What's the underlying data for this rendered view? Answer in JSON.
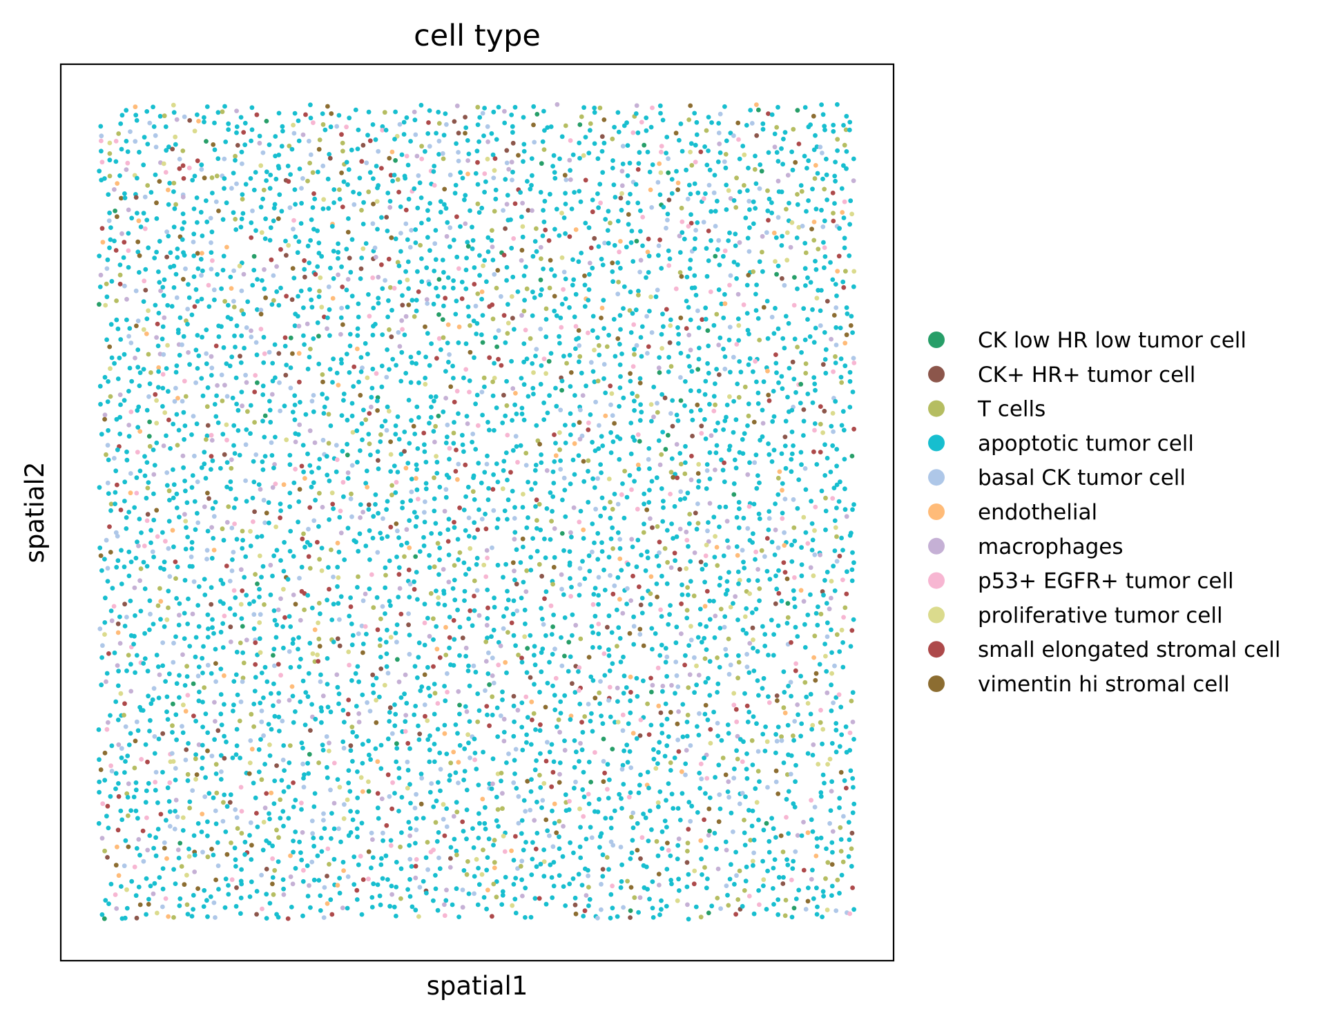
{
  "chart_data": {
    "type": "scatter",
    "title": "cell type",
    "xlabel": "spatial1",
    "ylabel": "spatial2",
    "grid": false,
    "ticks": false,
    "legend_placement": "right",
    "point_style": "small filled circles, tissue-like spatial layout filling a square region",
    "series": [
      {
        "name": "CK low HR low tumor cell",
        "color": "#279e68",
        "share": 0.015
      },
      {
        "name": "CK+ HR+ tumor cell",
        "color": "#8c564b",
        "share": 0.02
      },
      {
        "name": "T cells",
        "color": "#b5bd61",
        "share": 0.065
      },
      {
        "name": "apoptotic tumor cell",
        "color": "#17becf",
        "share": 0.6
      },
      {
        "name": "basal CK tumor cell",
        "color": "#aec7e8",
        "share": 0.09
      },
      {
        "name": "endothelial",
        "color": "#ffbb78",
        "share": 0.02
      },
      {
        "name": "macrophages",
        "color": "#c5b0d5",
        "share": 0.05
      },
      {
        "name": "p53+ EGFR+ tumor cell",
        "color": "#f7b6d2",
        "share": 0.04
      },
      {
        "name": "proliferative tumor cell",
        "color": "#dbdb8d",
        "share": 0.03
      },
      {
        "name": "small elongated stromal cell",
        "color": "#ad494a",
        "share": 0.04
      },
      {
        "name": "vimentin hi stromal cell",
        "color": "#8c6d31",
        "share": 0.03
      }
    ]
  }
}
